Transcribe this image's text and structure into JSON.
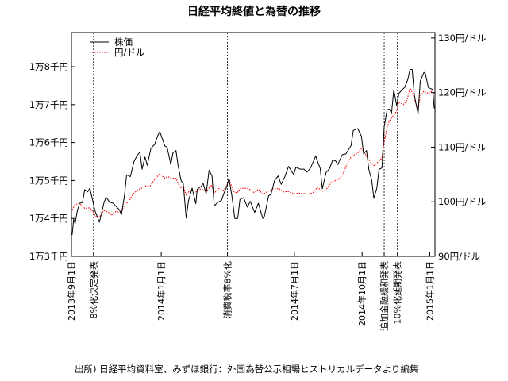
{
  "chart_data": {
    "type": "line",
    "title": "日経平均終値と為替の推移",
    "source": "出所) 日経平均資料室、みずほ銀行：外国為替公示相場ヒストリカルデータより編集",
    "x_domain": [
      "2013-09-01",
      "2015-01-08"
    ],
    "left_axis": {
      "ylim": [
        13000,
        18900
      ],
      "ticks": [
        {
          "value": 13000,
          "label": "1万3千円"
        },
        {
          "value": 14000,
          "label": "1万4千円"
        },
        {
          "value": 15000,
          "label": "1万5千円"
        },
        {
          "value": 16000,
          "label": "1万6千円"
        },
        {
          "value": 17000,
          "label": "1万7千円"
        },
        {
          "value": 18000,
          "label": "1万8千円"
        }
      ]
    },
    "right_axis": {
      "ylim": [
        90,
        131
      ],
      "ticks": [
        {
          "value": 90,
          "label": "90円/ドル"
        },
        {
          "value": 100,
          "label": "100円/ドル"
        },
        {
          "value": 110,
          "label": "110円/ドル"
        },
        {
          "value": 120,
          "label": "120円/ドル"
        },
        {
          "value": 130,
          "label": "130円/ドル"
        }
      ]
    },
    "x_ticks": [
      {
        "date": "2013-09-01",
        "label": "2013年9月1日"
      },
      {
        "date": "2014-01-01",
        "label": "2014年1月1日"
      },
      {
        "date": "2014-07-01",
        "label": "2014年7月1日"
      },
      {
        "date": "2014-10-01",
        "label": "2014年10月1日"
      },
      {
        "date": "2015-01-01",
        "label": "2015年1月1日"
      }
    ],
    "events": [
      {
        "date": "2013-10-01",
        "label": "8%化決定発表"
      },
      {
        "date": "2014-04-01",
        "label": "消費税率8%化"
      },
      {
        "date": "2014-10-31",
        "label": "追加金融緩和発表"
      },
      {
        "date": "2014-11-18",
        "label": "10%化延期発表"
      }
    ],
    "legend": {
      "position": "top-left"
    },
    "series": [
      {
        "name": "株価",
        "axis": "left",
        "color": "#000000",
        "style": "solid",
        "points": [
          [
            "2013-09-02",
            13570
          ],
          [
            "2013-09-04",
            13980
          ],
          [
            "2013-09-06",
            13860
          ],
          [
            "2013-09-09",
            14200
          ],
          [
            "2013-09-12",
            14400
          ],
          [
            "2013-09-16",
            14420
          ],
          [
            "2013-09-19",
            14760
          ],
          [
            "2013-09-23",
            14700
          ],
          [
            "2013-09-26",
            14800
          ],
          [
            "2013-09-30",
            14460
          ],
          [
            "2013-10-03",
            14200
          ],
          [
            "2013-10-07",
            14000
          ],
          [
            "2013-10-09",
            13900
          ],
          [
            "2013-10-15",
            14400
          ],
          [
            "2013-10-18",
            14560
          ],
          [
            "2013-10-23",
            14430
          ],
          [
            "2013-10-28",
            14400
          ],
          [
            "2013-10-31",
            14330
          ],
          [
            "2013-11-05",
            14230
          ],
          [
            "2013-11-08",
            14100
          ],
          [
            "2013-11-12",
            14600
          ],
          [
            "2013-11-15",
            15150
          ],
          [
            "2013-11-20",
            15100
          ],
          [
            "2013-11-25",
            15500
          ],
          [
            "2013-11-29",
            15650
          ],
          [
            "2013-12-03",
            15750
          ],
          [
            "2013-12-06",
            15300
          ],
          [
            "2013-12-10",
            15620
          ],
          [
            "2013-12-13",
            15400
          ],
          [
            "2013-12-18",
            15850
          ],
          [
            "2013-12-23",
            15950
          ],
          [
            "2013-12-27",
            16170
          ],
          [
            "2013-12-30",
            16290
          ],
          [
            "2014-01-06",
            15910
          ],
          [
            "2014-01-09",
            15880
          ],
          [
            "2014-01-14",
            15420
          ],
          [
            "2014-01-17",
            15730
          ],
          [
            "2014-01-21",
            15790
          ],
          [
            "2014-01-24",
            15390
          ],
          [
            "2014-01-28",
            15000
          ],
          [
            "2014-01-31",
            14910
          ],
          [
            "2014-02-04",
            14010
          ],
          [
            "2014-02-07",
            14460
          ],
          [
            "2014-02-12",
            14800
          ],
          [
            "2014-02-17",
            14390
          ],
          [
            "2014-02-19",
            14770
          ],
          [
            "2014-02-24",
            14840
          ],
          [
            "2014-02-27",
            14920
          ],
          [
            "2014-03-03",
            14650
          ],
          [
            "2014-03-07",
            15270
          ],
          [
            "2014-03-11",
            15120
          ],
          [
            "2014-03-14",
            14330
          ],
          [
            "2014-03-18",
            14410
          ],
          [
            "2014-03-24",
            14480
          ],
          [
            "2014-03-28",
            14700
          ],
          [
            "2014-03-31",
            14830
          ],
          [
            "2014-04-03",
            15070
          ],
          [
            "2014-04-07",
            14600
          ],
          [
            "2014-04-11",
            14000
          ],
          [
            "2014-04-15",
            14000
          ],
          [
            "2014-04-18",
            14500
          ],
          [
            "2014-04-23",
            14550
          ],
          [
            "2014-04-28",
            14300
          ],
          [
            "2014-05-02",
            14450
          ],
          [
            "2014-05-08",
            14160
          ],
          [
            "2014-05-13",
            14400
          ],
          [
            "2014-05-19",
            14000
          ],
          [
            "2014-05-21",
            14040
          ],
          [
            "2014-05-27",
            14600
          ],
          [
            "2014-05-30",
            14630
          ],
          [
            "2014-06-04",
            15000
          ],
          [
            "2014-06-09",
            15120
          ],
          [
            "2014-06-13",
            14900
          ],
          [
            "2014-06-18",
            15100
          ],
          [
            "2014-06-23",
            15370
          ],
          [
            "2014-06-30",
            15160
          ],
          [
            "2014-07-03",
            15350
          ],
          [
            "2014-07-09",
            15300
          ],
          [
            "2014-07-14",
            15300
          ],
          [
            "2014-07-18",
            15220
          ],
          [
            "2014-07-23",
            15330
          ],
          [
            "2014-07-30",
            15650
          ],
          [
            "2014-08-01",
            15520
          ],
          [
            "2014-08-05",
            15320
          ],
          [
            "2014-08-08",
            14780
          ],
          [
            "2014-08-13",
            15210
          ],
          [
            "2014-08-18",
            15320
          ],
          [
            "2014-08-22",
            15540
          ],
          [
            "2014-08-26",
            15520
          ],
          [
            "2014-08-29",
            15420
          ],
          [
            "2014-09-04",
            15680
          ],
          [
            "2014-09-09",
            15700
          ],
          [
            "2014-09-16",
            15920
          ],
          [
            "2014-09-19",
            16320
          ],
          [
            "2014-09-25",
            16370
          ],
          [
            "2014-09-30",
            16170
          ],
          [
            "2014-10-03",
            15700
          ],
          [
            "2014-10-07",
            15790
          ],
          [
            "2014-10-10",
            15300
          ],
          [
            "2014-10-14",
            15010
          ],
          [
            "2014-10-17",
            14530
          ],
          [
            "2014-10-21",
            14800
          ],
          [
            "2014-10-24",
            15290
          ],
          [
            "2014-10-28",
            15330
          ],
          [
            "2014-10-31",
            16410
          ],
          [
            "2014-11-04",
            16860
          ],
          [
            "2014-11-07",
            16880
          ],
          [
            "2014-11-10",
            16780
          ],
          [
            "2014-11-13",
            17390
          ],
          [
            "2014-11-17",
            16970
          ],
          [
            "2014-11-20",
            17300
          ],
          [
            "2014-11-25",
            17400
          ],
          [
            "2014-11-28",
            17460
          ],
          [
            "2014-12-02",
            17660
          ],
          [
            "2014-12-05",
            17920
          ],
          [
            "2014-12-08",
            17930
          ],
          [
            "2014-12-11",
            17250
          ],
          [
            "2014-12-16",
            16760
          ],
          [
            "2014-12-19",
            17620
          ],
          [
            "2014-12-24",
            17850
          ],
          [
            "2014-12-26",
            17820
          ],
          [
            "2014-12-30",
            17450
          ],
          [
            "2015-01-05",
            17400
          ],
          [
            "2015-01-07",
            16900
          ]
        ]
      },
      {
        "name": "円/ドル",
        "axis": "right",
        "color": "#ff0000",
        "style": "dotted",
        "points": [
          [
            "2013-09-02",
            98.5
          ],
          [
            "2013-09-06",
            99.5
          ],
          [
            "2013-09-12",
            99.7
          ],
          [
            "2013-09-19",
            98.8
          ],
          [
            "2013-09-26",
            98.9
          ],
          [
            "2013-09-30",
            98.2
          ],
          [
            "2013-10-04",
            97.3
          ],
          [
            "2013-10-09",
            97.2
          ],
          [
            "2013-10-15",
            98.4
          ],
          [
            "2013-10-21",
            98.1
          ],
          [
            "2013-10-25",
            97.5
          ],
          [
            "2013-10-31",
            98.2
          ],
          [
            "2013-11-07",
            98.1
          ],
          [
            "2013-11-13",
            99.6
          ],
          [
            "2013-11-18",
            100.0
          ],
          [
            "2013-11-22",
            101.1
          ],
          [
            "2013-11-29",
            102.1
          ],
          [
            "2013-12-04",
            102.4
          ],
          [
            "2013-12-11",
            102.9
          ],
          [
            "2013-12-17",
            102.9
          ],
          [
            "2013-12-23",
            104.1
          ],
          [
            "2013-12-30",
            105.1
          ],
          [
            "2014-01-06",
            104.3
          ],
          [
            "2014-01-10",
            104.6
          ],
          [
            "2014-01-15",
            104.3
          ],
          [
            "2014-01-21",
            104.3
          ],
          [
            "2014-01-27",
            102.5
          ],
          [
            "2014-01-31",
            102.9
          ],
          [
            "2014-02-04",
            101.2
          ],
          [
            "2014-02-10",
            102.3
          ],
          [
            "2014-02-17",
            101.8
          ],
          [
            "2014-02-24",
            102.4
          ],
          [
            "2014-03-03",
            101.8
          ],
          [
            "2014-03-10",
            103.1
          ],
          [
            "2014-03-14",
            101.6
          ],
          [
            "2014-03-20",
            102.4
          ],
          [
            "2014-03-27",
            102.1
          ],
          [
            "2014-04-01",
            103.2
          ],
          [
            "2014-04-04",
            103.9
          ],
          [
            "2014-04-09",
            101.9
          ],
          [
            "2014-04-14",
            101.6
          ],
          [
            "2014-04-18",
            102.4
          ],
          [
            "2014-04-24",
            102.5
          ],
          [
            "2014-04-30",
            102.4
          ],
          [
            "2014-05-07",
            101.7
          ],
          [
            "2014-05-13",
            102.3
          ],
          [
            "2014-05-19",
            101.4
          ],
          [
            "2014-05-26",
            101.9
          ],
          [
            "2014-06-02",
            102.4
          ],
          [
            "2014-06-10",
            102.4
          ],
          [
            "2014-06-16",
            101.8
          ],
          [
            "2014-06-23",
            101.9
          ],
          [
            "2014-06-30",
            101.4
          ],
          [
            "2014-07-07",
            101.6
          ],
          [
            "2014-07-14",
            101.5
          ],
          [
            "2014-07-21",
            101.4
          ],
          [
            "2014-07-28",
            101.8
          ],
          [
            "2014-08-01",
            102.7
          ],
          [
            "2014-08-08",
            101.9
          ],
          [
            "2014-08-14",
            102.4
          ],
          [
            "2014-08-20",
            103.6
          ],
          [
            "2014-08-26",
            103.9
          ],
          [
            "2014-09-01",
            104.3
          ],
          [
            "2014-09-05",
            105.1
          ],
          [
            "2014-09-11",
            107.1
          ],
          [
            "2014-09-17",
            108.4
          ],
          [
            "2014-09-24",
            108.8
          ],
          [
            "2014-09-30",
            109.7
          ],
          [
            "2014-10-03",
            109.3
          ],
          [
            "2014-10-08",
            108.1
          ],
          [
            "2014-10-14",
            107.0
          ],
          [
            "2014-10-17",
            106.6
          ],
          [
            "2014-10-22",
            107.2
          ],
          [
            "2014-10-28",
            108.0
          ],
          [
            "2014-10-31",
            110.9
          ],
          [
            "2014-11-04",
            113.7
          ],
          [
            "2014-11-07",
            114.8
          ],
          [
            "2014-11-12",
            115.7
          ],
          [
            "2014-11-17",
            116.6
          ],
          [
            "2014-11-20",
            118.3
          ],
          [
            "2014-11-26",
            117.8
          ],
          [
            "2014-12-01",
            118.6
          ],
          [
            "2014-12-05",
            120.8
          ],
          [
            "2014-12-09",
            119.8
          ],
          [
            "2014-12-12",
            118.4
          ],
          [
            "2014-12-16",
            116.9
          ],
          [
            "2014-12-19",
            119.3
          ],
          [
            "2014-12-24",
            120.3
          ],
          [
            "2014-12-30",
            119.8
          ],
          [
            "2015-01-05",
            120.4
          ],
          [
            "2015-01-07",
            119.8
          ]
        ]
      }
    ]
  }
}
